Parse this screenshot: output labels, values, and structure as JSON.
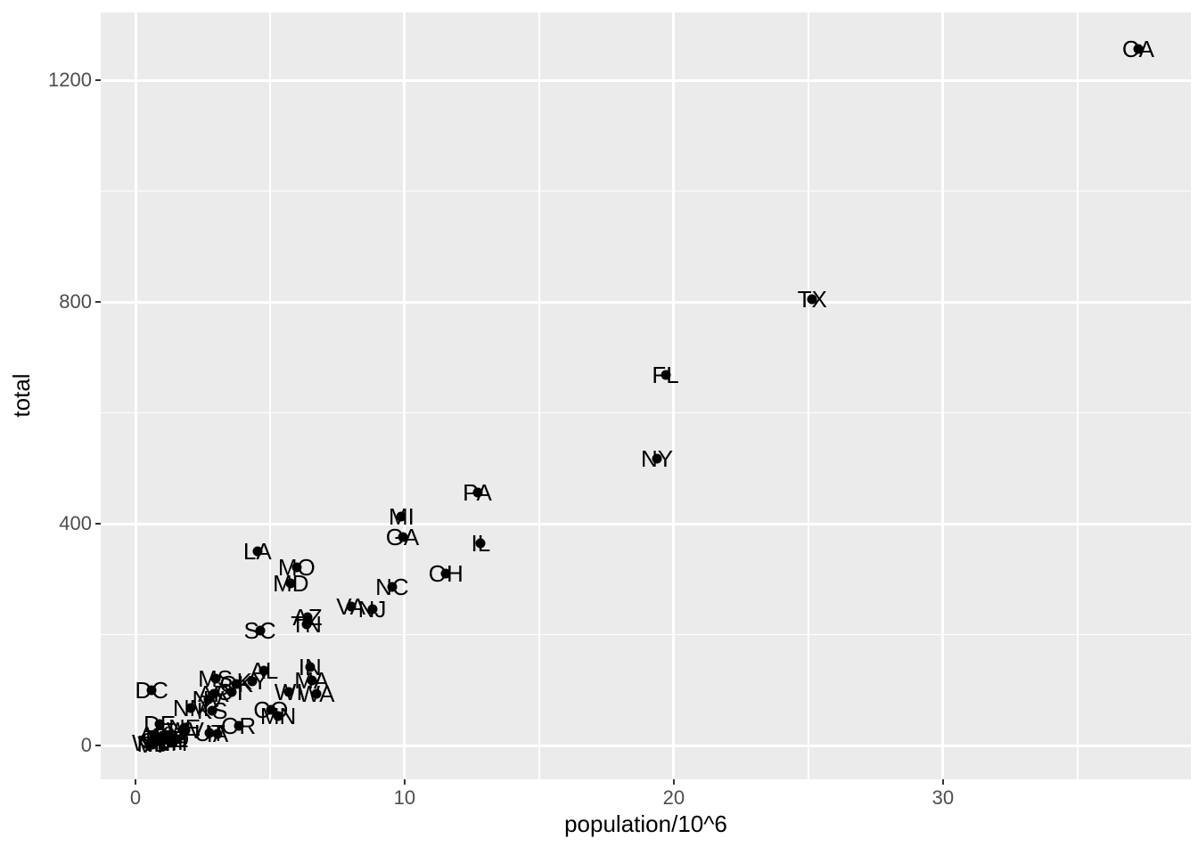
{
  "chart_data": {
    "type": "scatter",
    "title": "",
    "xlabel": "population/10^6",
    "ylabel": "total",
    "xlim": [
      -1.29,
      39.21
    ],
    "ylim": [
      -61,
      1322
    ],
    "x_major_ticks": [
      0,
      10,
      20,
      30
    ],
    "x_minor_ticks": [
      5,
      15,
      25,
      35
    ],
    "y_major_ticks": [
      0,
      400,
      800,
      1200
    ],
    "y_minor_ticks": [
      200,
      600,
      1000
    ],
    "grid": "on",
    "legend": "none",
    "point_style": "black dot with centered state-abbreviation text label",
    "points": [
      {
        "abb": "AL",
        "x": 4.78,
        "y": 135
      },
      {
        "abb": "AK",
        "x": 0.71,
        "y": 19
      },
      {
        "abb": "AZ",
        "x": 6.392,
        "y": 232
      },
      {
        "abb": "AR",
        "x": 2.916,
        "y": 93
      },
      {
        "abb": "CA",
        "x": 37.254,
        "y": 1257
      },
      {
        "abb": "CO",
        "x": 5.029,
        "y": 65
      },
      {
        "abb": "CT",
        "x": 3.574,
        "y": 97
      },
      {
        "abb": "DE",
        "x": 0.898,
        "y": 38
      },
      {
        "abb": "DC",
        "x": 0.602,
        "y": 99
      },
      {
        "abb": "FL",
        "x": 19.688,
        "y": 669
      },
      {
        "abb": "GA",
        "x": 9.92,
        "y": 376
      },
      {
        "abb": "HI",
        "x": 1.36,
        "y": 7
      },
      {
        "abb": "ID",
        "x": 1.568,
        "y": 12
      },
      {
        "abb": "IL",
        "x": 12.831,
        "y": 364
      },
      {
        "abb": "IN",
        "x": 6.484,
        "y": 142
      },
      {
        "abb": "IA",
        "x": 3.046,
        "y": 21
      },
      {
        "abb": "KS",
        "x": 2.853,
        "y": 63
      },
      {
        "abb": "KY",
        "x": 4.339,
        "y": 116
      },
      {
        "abb": "LA",
        "x": 4.533,
        "y": 351
      },
      {
        "abb": "ME",
        "x": 1.328,
        "y": 11
      },
      {
        "abb": "MD",
        "x": 5.774,
        "y": 293
      },
      {
        "abb": "MA",
        "x": 6.548,
        "y": 118
      },
      {
        "abb": "MI",
        "x": 9.884,
        "y": 413
      },
      {
        "abb": "MN",
        "x": 5.304,
        "y": 53
      },
      {
        "abb": "MS",
        "x": 2.967,
        "y": 120
      },
      {
        "abb": "MO",
        "x": 5.989,
        "y": 321
      },
      {
        "abb": "MT",
        "x": 0.989,
        "y": 12
      },
      {
        "abb": "NE",
        "x": 1.826,
        "y": 32
      },
      {
        "abb": "NV",
        "x": 2.701,
        "y": 84
      },
      {
        "abb": "NH",
        "x": 1.316,
        "y": 5
      },
      {
        "abb": "NJ",
        "x": 8.792,
        "y": 246
      },
      {
        "abb": "NM",
        "x": 2.059,
        "y": 67
      },
      {
        "abb": "NY",
        "x": 19.378,
        "y": 517
      },
      {
        "abb": "NC",
        "x": 9.535,
        "y": 286
      },
      {
        "abb": "ND",
        "x": 0.673,
        "y": 4
      },
      {
        "abb": "OH",
        "x": 11.537,
        "y": 310
      },
      {
        "abb": "OK",
        "x": 3.751,
        "y": 111
      },
      {
        "abb": "OR",
        "x": 3.831,
        "y": 36
      },
      {
        "abb": "PA",
        "x": 12.702,
        "y": 457
      },
      {
        "abb": "RI",
        "x": 1.053,
        "y": 16
      },
      {
        "abb": "SC",
        "x": 4.625,
        "y": 207
      },
      {
        "abb": "SD",
        "x": 0.814,
        "y": 8
      },
      {
        "abb": "TN",
        "x": 6.346,
        "y": 219
      },
      {
        "abb": "TX",
        "x": 25.146,
        "y": 805
      },
      {
        "abb": "UT",
        "x": 2.764,
        "y": 22
      },
      {
        "abb": "VT",
        "x": 0.626,
        "y": 2
      },
      {
        "abb": "VA",
        "x": 8.001,
        "y": 250
      },
      {
        "abb": "WA",
        "x": 6.725,
        "y": 93
      },
      {
        "abb": "WV",
        "x": 1.853,
        "y": 27
      },
      {
        "abb": "WI",
        "x": 5.687,
        "y": 97
      },
      {
        "abb": "WY",
        "x": 0.564,
        "y": 5
      }
    ]
  },
  "colors": {
    "figure_background": "#FFFFFF",
    "panel_background": "#EBEBEB",
    "gridline": "#FFFFFF",
    "tick_label_text": "#4D4D4D",
    "tick_mark": "#333333",
    "axis_title_text": "#000000",
    "point": "#000000",
    "state_label_text": "#000000"
  }
}
